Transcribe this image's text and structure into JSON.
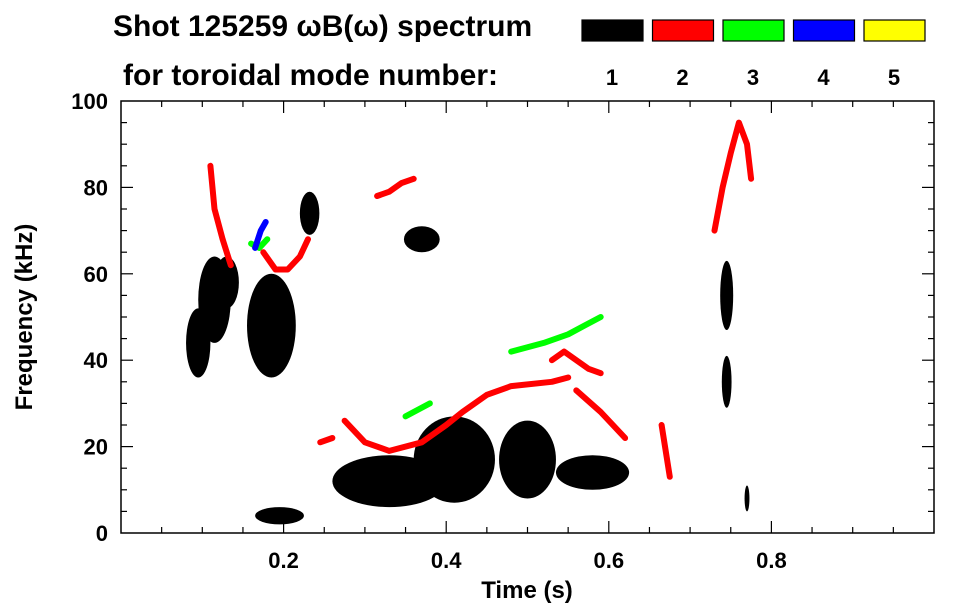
{
  "chart_data": {
    "type": "heatmap",
    "title_line1": "Shot 125259 ωB(ω) spectrum",
    "title_line2": "for toroidal mode number:",
    "xlabel": "Time (s)",
    "ylabel": "Frequency (kHz)",
    "xlim": [
      0.0,
      1.0
    ],
    "ylim": [
      0,
      100
    ],
    "x_ticks": [
      0.2,
      0.4,
      0.6,
      0.8
    ],
    "x_tick_labels": [
      "0.2",
      "0.4",
      "0.6",
      "0.8"
    ],
    "y_ticks": [
      0,
      20,
      40,
      60,
      80,
      100
    ],
    "y_tick_labels": [
      "0",
      "20",
      "40",
      "60",
      "80",
      "100"
    ],
    "grid": false,
    "legend_position": "top-right",
    "legend": [
      {
        "label": "1",
        "color": "#000000"
      },
      {
        "label": "2",
        "color": "#ff0000"
      },
      {
        "label": "3",
        "color": "#00ff00"
      },
      {
        "label": "4",
        "color": "#0000ff"
      },
      {
        "label": "5",
        "color": "#ffff00"
      }
    ],
    "series": [
      {
        "mode": 1,
        "color": "#000000",
        "blobs": [
          {
            "t": 0.095,
            "f": 44,
            "dt": 0.015,
            "df": 8
          },
          {
            "t": 0.115,
            "f": 54,
            "dt": 0.02,
            "df": 10
          },
          {
            "t": 0.13,
            "f": 58,
            "dt": 0.015,
            "df": 6
          },
          {
            "t": 0.185,
            "f": 48,
            "dt": 0.03,
            "df": 12
          },
          {
            "t": 0.195,
            "f": 4,
            "dt": 0.03,
            "df": 2
          },
          {
            "t": 0.232,
            "f": 74,
            "dt": 0.012,
            "df": 5
          },
          {
            "t": 0.33,
            "f": 12,
            "dt": 0.07,
            "df": 6
          },
          {
            "t": 0.37,
            "f": 68,
            "dt": 0.022,
            "df": 3
          },
          {
            "t": 0.41,
            "f": 17,
            "dt": 0.05,
            "df": 10
          },
          {
            "t": 0.5,
            "f": 17,
            "dt": 0.035,
            "df": 9
          },
          {
            "t": 0.58,
            "f": 14,
            "dt": 0.045,
            "df": 4
          },
          {
            "t": 0.745,
            "f": 55,
            "dt": 0.008,
            "df": 8
          },
          {
            "t": 0.745,
            "f": 35,
            "dt": 0.006,
            "df": 6
          },
          {
            "t": 0.77,
            "f": 8,
            "dt": 0.003,
            "df": 3
          }
        ]
      },
      {
        "mode": 2,
        "color": "#ff0000",
        "tracks": [
          [
            [
              0.11,
              85
            ],
            [
              0.115,
              75
            ],
            [
              0.125,
              68
            ],
            [
              0.135,
              62
            ]
          ],
          [
            [
              0.175,
              65
            ],
            [
              0.19,
              61
            ],
            [
              0.205,
              61
            ],
            [
              0.22,
              64
            ],
            [
              0.23,
              68
            ]
          ],
          [
            [
              0.245,
              21
            ],
            [
              0.26,
              22
            ]
          ],
          [
            [
              0.275,
              26
            ],
            [
              0.3,
              21
            ],
            [
              0.33,
              19
            ],
            [
              0.37,
              21
            ],
            [
              0.4,
              25
            ],
            [
              0.42,
              28
            ],
            [
              0.45,
              32
            ],
            [
              0.48,
              34
            ],
            [
              0.53,
              35
            ],
            [
              0.55,
              36
            ]
          ],
          [
            [
              0.53,
              40
            ],
            [
              0.545,
              42
            ],
            [
              0.56,
              40
            ],
            [
              0.575,
              38
            ],
            [
              0.59,
              37
            ]
          ],
          [
            [
              0.56,
              33
            ],
            [
              0.59,
              28
            ],
            [
              0.62,
              22
            ]
          ],
          [
            [
              0.315,
              78
            ],
            [
              0.33,
              79
            ],
            [
              0.345,
              81
            ],
            [
              0.36,
              82
            ]
          ],
          [
            [
              0.73,
              70
            ],
            [
              0.74,
              80
            ],
            [
              0.75,
              88
            ],
            [
              0.76,
              95
            ],
            [
              0.77,
              90
            ],
            [
              0.775,
              82
            ]
          ],
          [
            [
              0.665,
              25
            ],
            [
              0.675,
              13
            ]
          ]
        ]
      },
      {
        "mode": 3,
        "color": "#00ff00",
        "tracks": [
          [
            [
              0.16,
              67
            ],
            [
              0.17,
              66
            ],
            [
              0.18,
              68
            ]
          ],
          [
            [
              0.48,
              42
            ],
            [
              0.52,
              44
            ],
            [
              0.55,
              46
            ],
            [
              0.57,
              48
            ],
            [
              0.59,
              50
            ]
          ],
          [
            [
              0.35,
              27
            ],
            [
              0.38,
              30
            ]
          ]
        ]
      },
      {
        "mode": 4,
        "color": "#0000ff",
        "tracks": [
          [
            [
              0.165,
              66
            ],
            [
              0.172,
              70
            ],
            [
              0.178,
              72
            ]
          ]
        ]
      },
      {
        "mode": 5,
        "color": "#ffff00",
        "tracks": []
      }
    ]
  }
}
